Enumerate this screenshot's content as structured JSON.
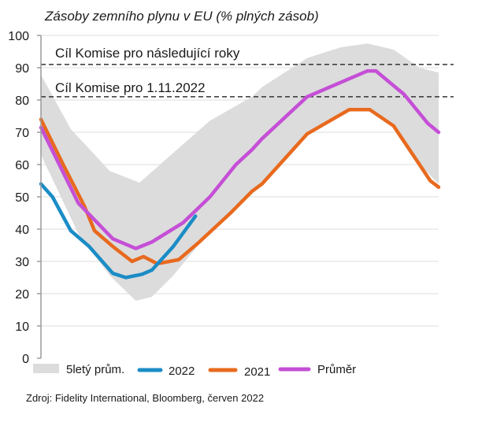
{
  "chart_data": {
    "type": "line",
    "title": "Zásoby zemního plynu v EU (% plných zásob)",
    "xlabel": "",
    "ylabel": "",
    "ylim": [
      0,
      100
    ],
    "xlim": [
      0,
      52
    ],
    "yticks": [
      0,
      10,
      20,
      30,
      40,
      50,
      60,
      70,
      80,
      90,
      100
    ],
    "grid": true,
    "legend_position": "bottom",
    "colors": {
      "band": "#dcdcdc",
      "2022": "#1b8cc6",
      "2021": "#e86a1e",
      "avg": "#c54fd6",
      "grid": "#e3e3e3",
      "target": "#333333"
    },
    "band": {
      "name": "5letý prům.",
      "upper": [
        [
          0,
          87.8
        ],
        [
          3.9,
          71
        ],
        [
          9,
          58
        ],
        [
          12.9,
          54.4
        ],
        [
          17,
          63
        ],
        [
          22.1,
          73.6
        ],
        [
          27.6,
          81
        ],
        [
          28.9,
          84
        ],
        [
          34.8,
          93
        ],
        [
          39.2,
          96.3
        ],
        [
          42.7,
          97.5
        ],
        [
          46.1,
          95.6
        ],
        [
          49.5,
          90
        ],
        [
          52,
          88.5
        ]
      ],
      "lower": [
        [
          0,
          63
        ],
        [
          4.9,
          38.5
        ],
        [
          9,
          25.6
        ],
        [
          12.4,
          17.8
        ],
        [
          14.5,
          19
        ],
        [
          17.3,
          25.6
        ],
        [
          20.7,
          35.4
        ],
        [
          27.6,
          51
        ],
        [
          34.8,
          69
        ],
        [
          40.3,
          77
        ],
        [
          43,
          77
        ],
        [
          46.1,
          72
        ],
        [
          49.5,
          60
        ],
        [
          52,
          54
        ]
      ]
    },
    "series": [
      {
        "name": "2022",
        "key": "2022",
        "points": [
          [
            0,
            54
          ],
          [
            1.5,
            50
          ],
          [
            3.9,
            39.5
          ],
          [
            6.3,
            34.6
          ],
          [
            9.4,
            26.3
          ],
          [
            11.1,
            25
          ],
          [
            13.2,
            26
          ],
          [
            14.5,
            27.3
          ],
          [
            17.3,
            34.6
          ],
          [
            20.2,
            44
          ]
        ]
      },
      {
        "name": "2021",
        "key": "2021",
        "points": [
          [
            0,
            74
          ],
          [
            2.9,
            60
          ],
          [
            5.7,
            47
          ],
          [
            7,
            39.5
          ],
          [
            9.4,
            34.6
          ],
          [
            11.9,
            30
          ],
          [
            13.4,
            31.5
          ],
          [
            15.2,
            29.3
          ],
          [
            18,
            30.5
          ],
          [
            20.7,
            36
          ],
          [
            24.8,
            45
          ],
          [
            27.6,
            51.7
          ],
          [
            28.9,
            54
          ],
          [
            34.8,
            69.5
          ],
          [
            40.3,
            77
          ],
          [
            43,
            77
          ],
          [
            46.1,
            72
          ],
          [
            49.5,
            60
          ],
          [
            50.9,
            55
          ],
          [
            52,
            53
          ]
        ]
      },
      {
        "name": "Průměr",
        "key": "avg",
        "points": [
          [
            0,
            71.5
          ],
          [
            4.9,
            48
          ],
          [
            9.4,
            37
          ],
          [
            12.4,
            34
          ],
          [
            14.5,
            36
          ],
          [
            18.6,
            42
          ],
          [
            22.1,
            50
          ],
          [
            25.5,
            60
          ],
          [
            27.6,
            64.6
          ],
          [
            28.9,
            68
          ],
          [
            34.8,
            81
          ],
          [
            42.7,
            89
          ],
          [
            43.8,
            89
          ],
          [
            47.5,
            81.7
          ],
          [
            50.6,
            72.7
          ],
          [
            52,
            70
          ]
        ]
      }
    ],
    "annotations": [
      {
        "text": "Cíl Komise pro následující roky",
        "y": 91
      },
      {
        "text": "Cíl Komise pro 1.11.2022",
        "y": 81
      }
    ],
    "source": "Zdroj: Fidelity International, Bloomberg, červen 2022"
  }
}
